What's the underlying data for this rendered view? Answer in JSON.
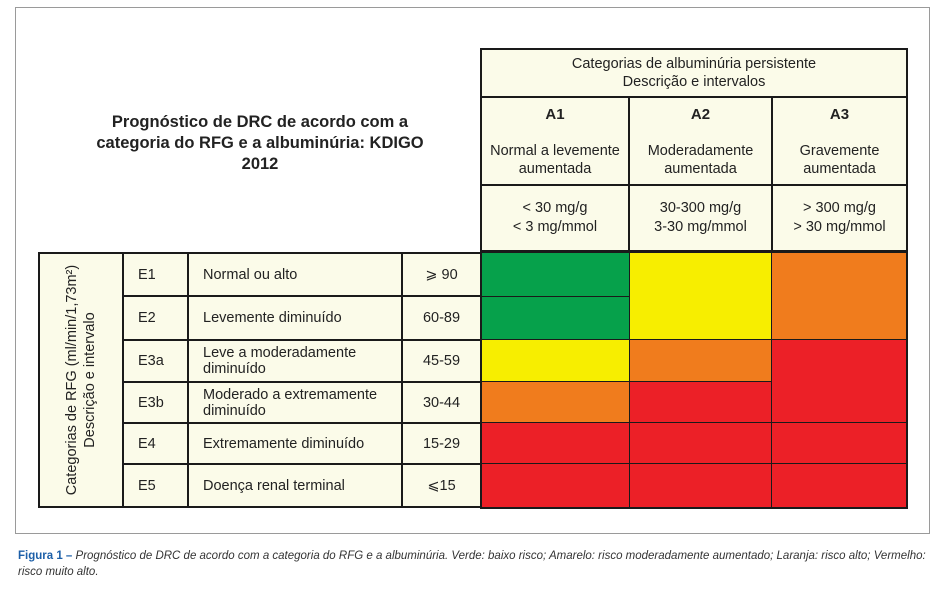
{
  "title": "Prognóstico de DRC de acordo com a categoria do RFG e a albuminúria: KDIGO 2012",
  "albuminuria_header": {
    "line1": "Categorias de albuminúria persistente",
    "line2": "Descrição e intervalos"
  },
  "albuminuria": [
    {
      "code": "A1",
      "desc1": "Normal a levemente",
      "desc2": "aumentada",
      "range1": "< 30 mg/g",
      "range2": "< 3 mg/mmol"
    },
    {
      "code": "A2",
      "desc1": "Moderadamente",
      "desc2": "aumentada",
      "range1": "30-300 mg/g",
      "range2": "3-30 mg/mmol"
    },
    {
      "code": "A3",
      "desc1": "Gravemente",
      "desc2": "aumentada",
      "range1": "> 300 mg/g",
      "range2": "> 30 mg/mmol"
    }
  ],
  "rfg_header": {
    "line1": "Categorias de RFG (ml/min/1,73m²)",
    "line2": "Descrição e intervalo"
  },
  "rfg_rows": [
    {
      "code": "E1",
      "desc": "Normal ou alto",
      "range": "⩾ 90"
    },
    {
      "code": "E2",
      "desc": "Levemente diminuído",
      "range": "60-89"
    },
    {
      "code": "E3a",
      "desc": "Leve a moderadamente diminuído",
      "range": "45-59"
    },
    {
      "code": "E3b",
      "desc": "Moderado a extremamente diminuído",
      "range": "30-44"
    },
    {
      "code": "E4",
      "desc": "Extremamente diminuído",
      "range": "15-29"
    },
    {
      "code": "E5",
      "desc": "Doença renal terminal",
      "range": "⩽15"
    }
  ],
  "colors": {
    "green": "#06a14b",
    "yellow": "#f7ee00",
    "orange": "#f07c1d",
    "red": "#ec2027",
    "cell_bg": "#fbfbe9"
  },
  "caption": {
    "label": "Figura 1 –",
    "text": "Prognóstico de DRC de acordo com a categoria do RFG e a albuminúria. Verde: baixo risco; Amarelo: risco moderadamente aumentado; Laranja: risco alto; Vermelho: risco muito alto."
  }
}
